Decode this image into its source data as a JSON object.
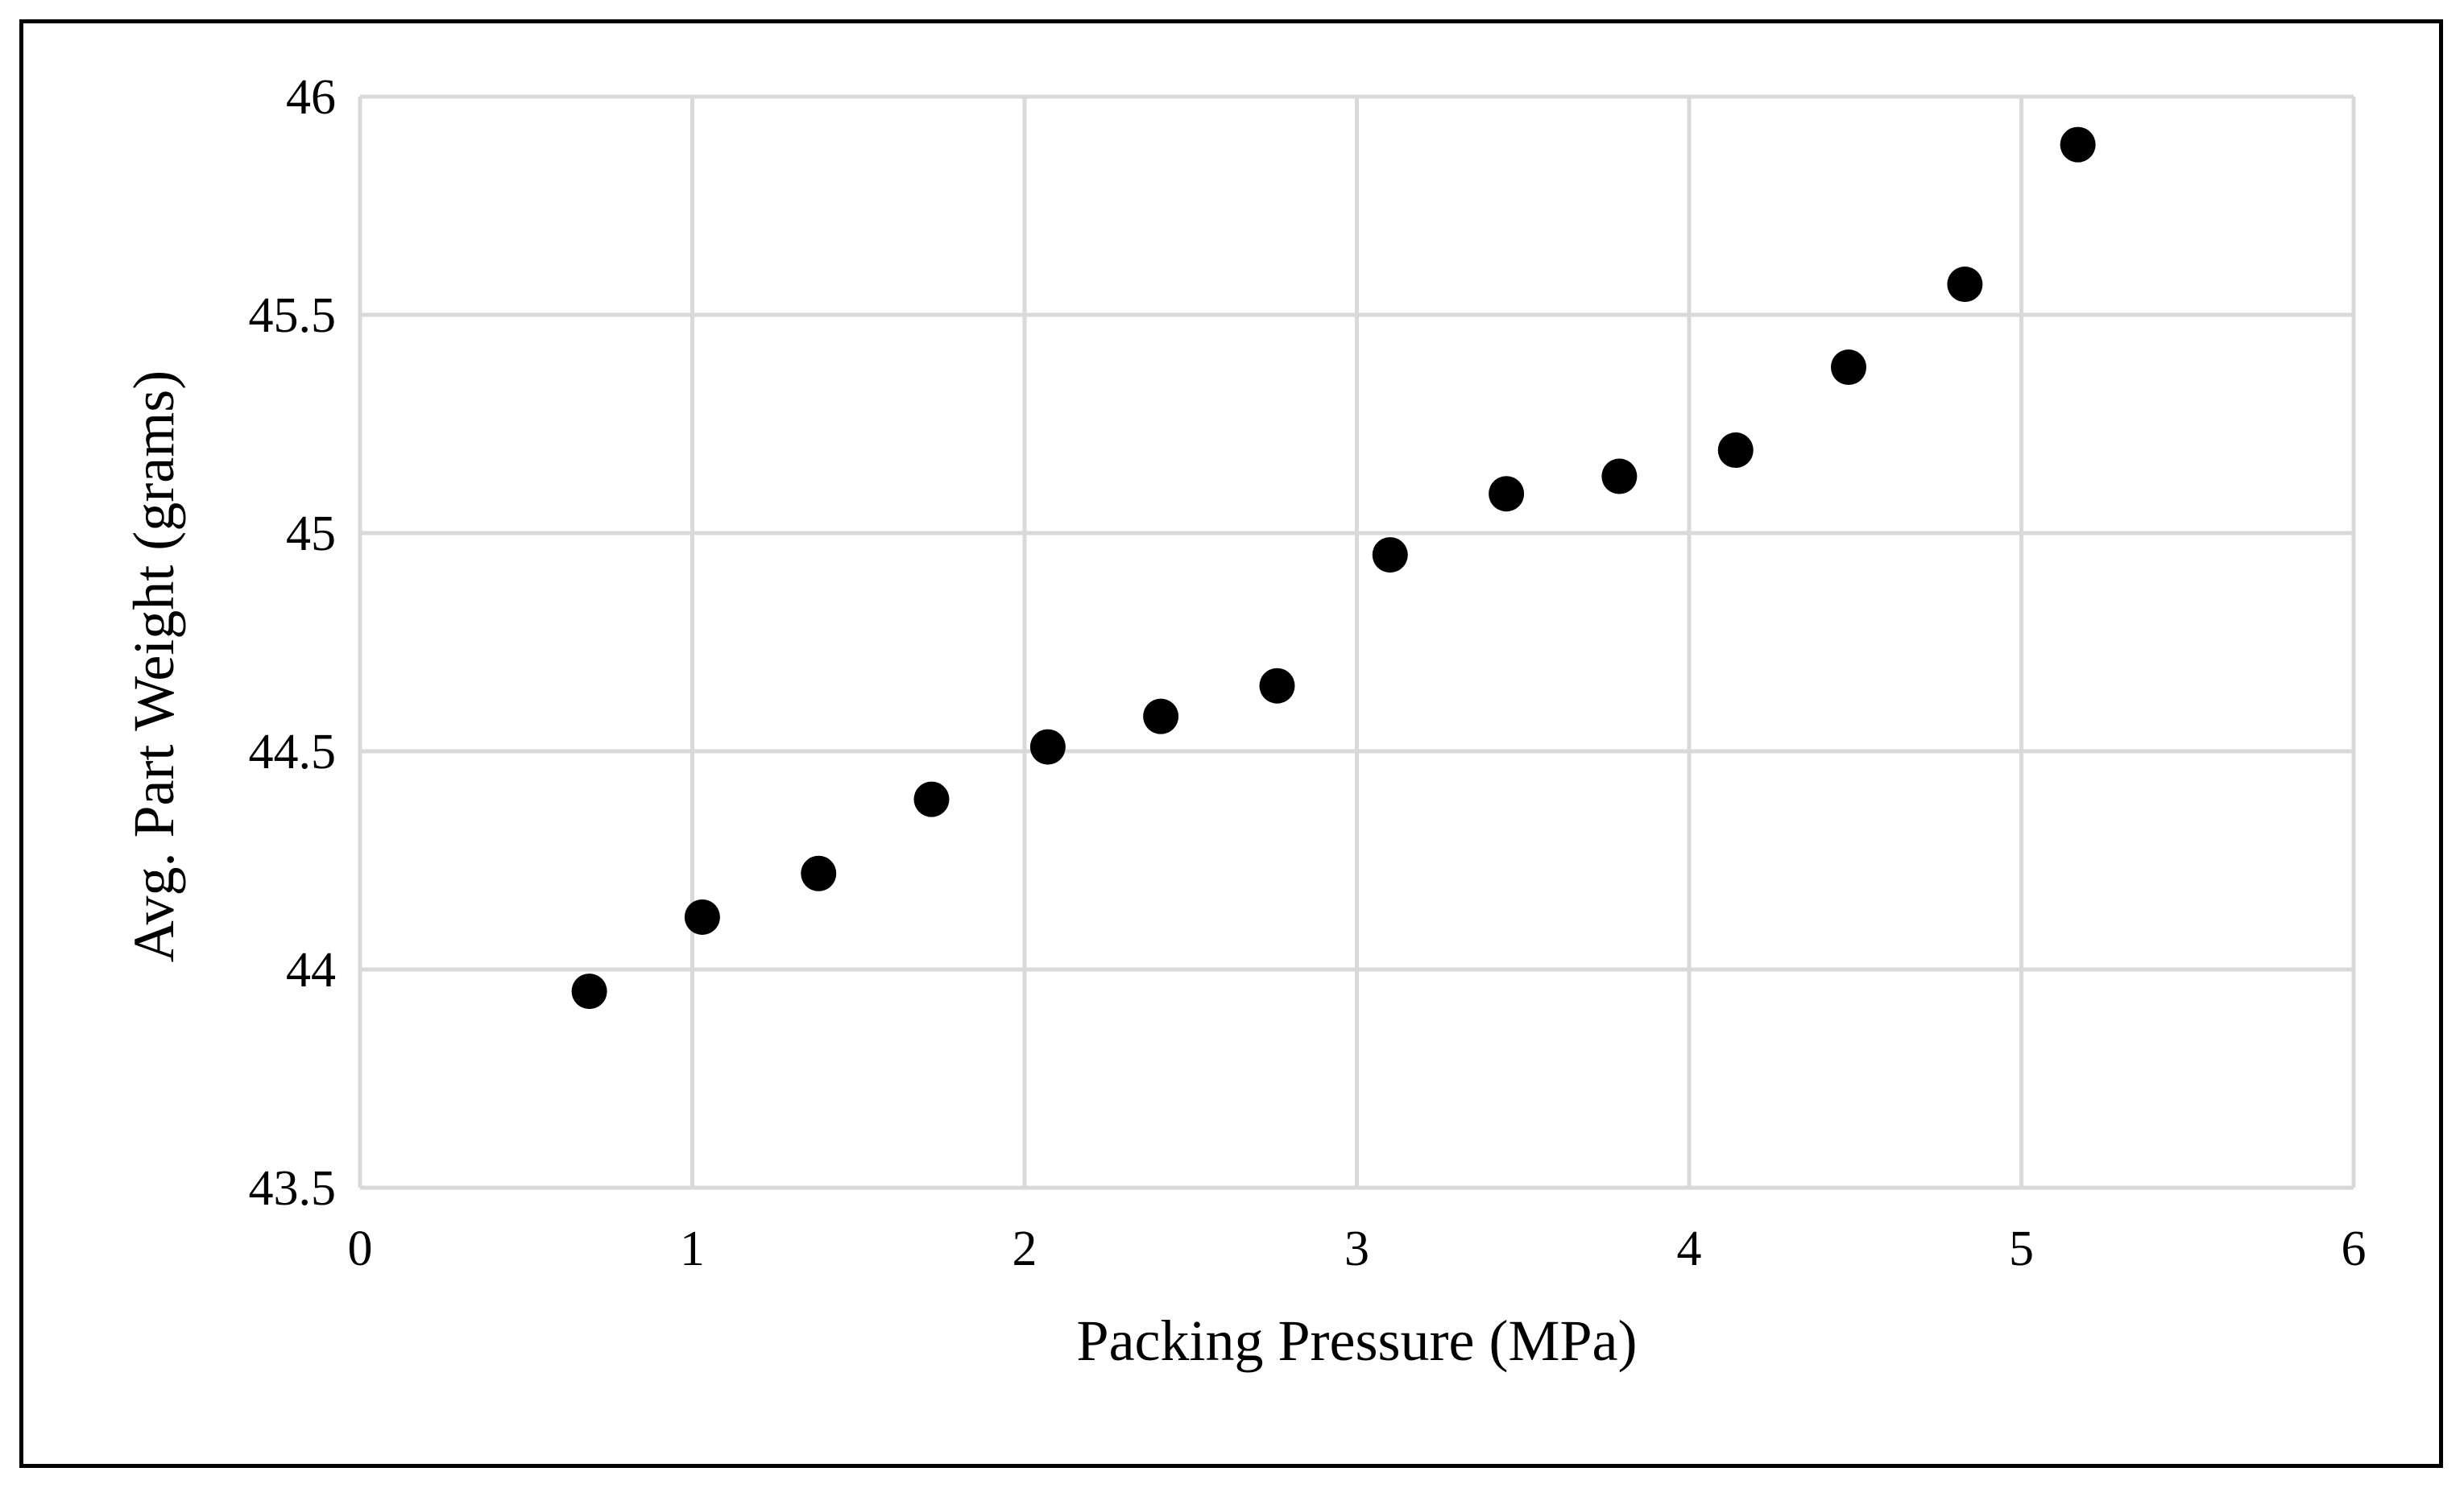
{
  "chart_data": {
    "type": "scatter",
    "title": "",
    "xlabel": "Packing Pressure (MPa)",
    "ylabel": "Avg. Part Weight (grams)",
    "xlim": [
      0,
      6
    ],
    "ylim": [
      43.5,
      46
    ],
    "xticks": [
      0,
      1,
      2,
      3,
      4,
      5,
      6
    ],
    "yticks": [
      43.5,
      44,
      44.5,
      45,
      45.5,
      46
    ],
    "xtick_labels": [
      "0",
      "1",
      "2",
      "3",
      "4",
      "5",
      "6"
    ],
    "ytick_labels": [
      "43.5",
      "44",
      "44.5",
      "45",
      "45.5",
      "46"
    ],
    "grid": true,
    "series": [
      {
        "name": "Avg. Part Weight",
        "x": [
          0.69,
          1.03,
          1.38,
          1.72,
          2.07,
          2.41,
          2.76,
          3.1,
          3.45,
          3.79,
          4.14,
          4.48,
          4.83,
          5.17
        ],
        "y": [
          43.95,
          44.12,
          44.22,
          44.39,
          44.51,
          44.58,
          44.65,
          44.95,
          45.09,
          45.13,
          45.19,
          45.38,
          45.57,
          45.89
        ]
      }
    ],
    "colors": {
      "marker": "#000000",
      "grid": "#d9d9d9",
      "frame": "#000000"
    }
  }
}
